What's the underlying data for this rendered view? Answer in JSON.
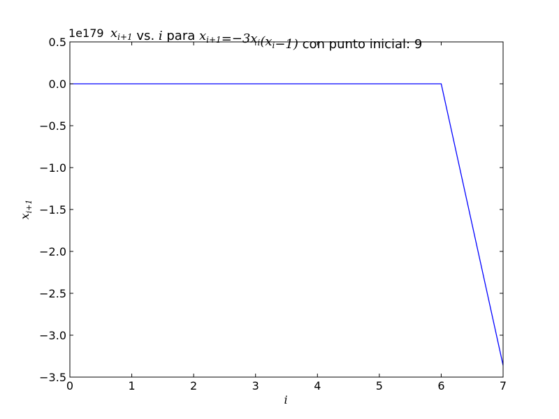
{
  "chart_data": {
    "type": "line",
    "title_parts": [
      {
        "text": "x",
        "math": true
      },
      {
        "text": "i+1",
        "math": true,
        "sub": true
      },
      {
        "text": " vs. ",
        "math": false
      },
      {
        "text": "i",
        "math": true
      },
      {
        "text": " para ",
        "math": false
      },
      {
        "text": "x",
        "math": true
      },
      {
        "text": "i+1",
        "math": true,
        "sub": true
      },
      {
        "text": "=−3",
        "math": true
      },
      {
        "text": "x",
        "math": true
      },
      {
        "text": "i",
        "math": true,
        "sub": true
      },
      {
        "text": "(",
        "math": true
      },
      {
        "text": "x",
        "math": true
      },
      {
        "text": "i",
        "math": true,
        "sub": true
      },
      {
        "text": "−1)",
        "math": true
      },
      {
        "text": " con punto inicial: 9",
        "math": false
      }
    ],
    "xlabel": "i",
    "ylabel_main": "x",
    "ylabel_sub": "i+1",
    "y_offset_label": "1e179",
    "xlim": [
      0,
      7
    ],
    "ylim": [
      -3.5,
      0.5
    ],
    "x_ticks": [
      0,
      1,
      2,
      3,
      4,
      5,
      6,
      7
    ],
    "x_tick_labels": [
      "0",
      "1",
      "2",
      "3",
      "4",
      "5",
      "6",
      "7"
    ],
    "y_ticks": [
      0.5,
      0.0,
      -0.5,
      -1.0,
      -1.5,
      -2.0,
      -2.5,
      -3.0,
      -3.5
    ],
    "y_tick_labels": [
      "0.5",
      "0.0",
      "−0.5",
      "−1.0",
      "−1.5",
      "−2.0",
      "−2.5",
      "−3.0",
      "−3.5"
    ],
    "grid": false,
    "series": [
      {
        "color": "#0000ff",
        "x": [
          0,
          1,
          2,
          3,
          4,
          5,
          6,
          7
        ],
        "y": [
          0,
          0,
          0,
          0,
          0,
          0,
          0,
          -3.36
        ]
      }
    ]
  }
}
